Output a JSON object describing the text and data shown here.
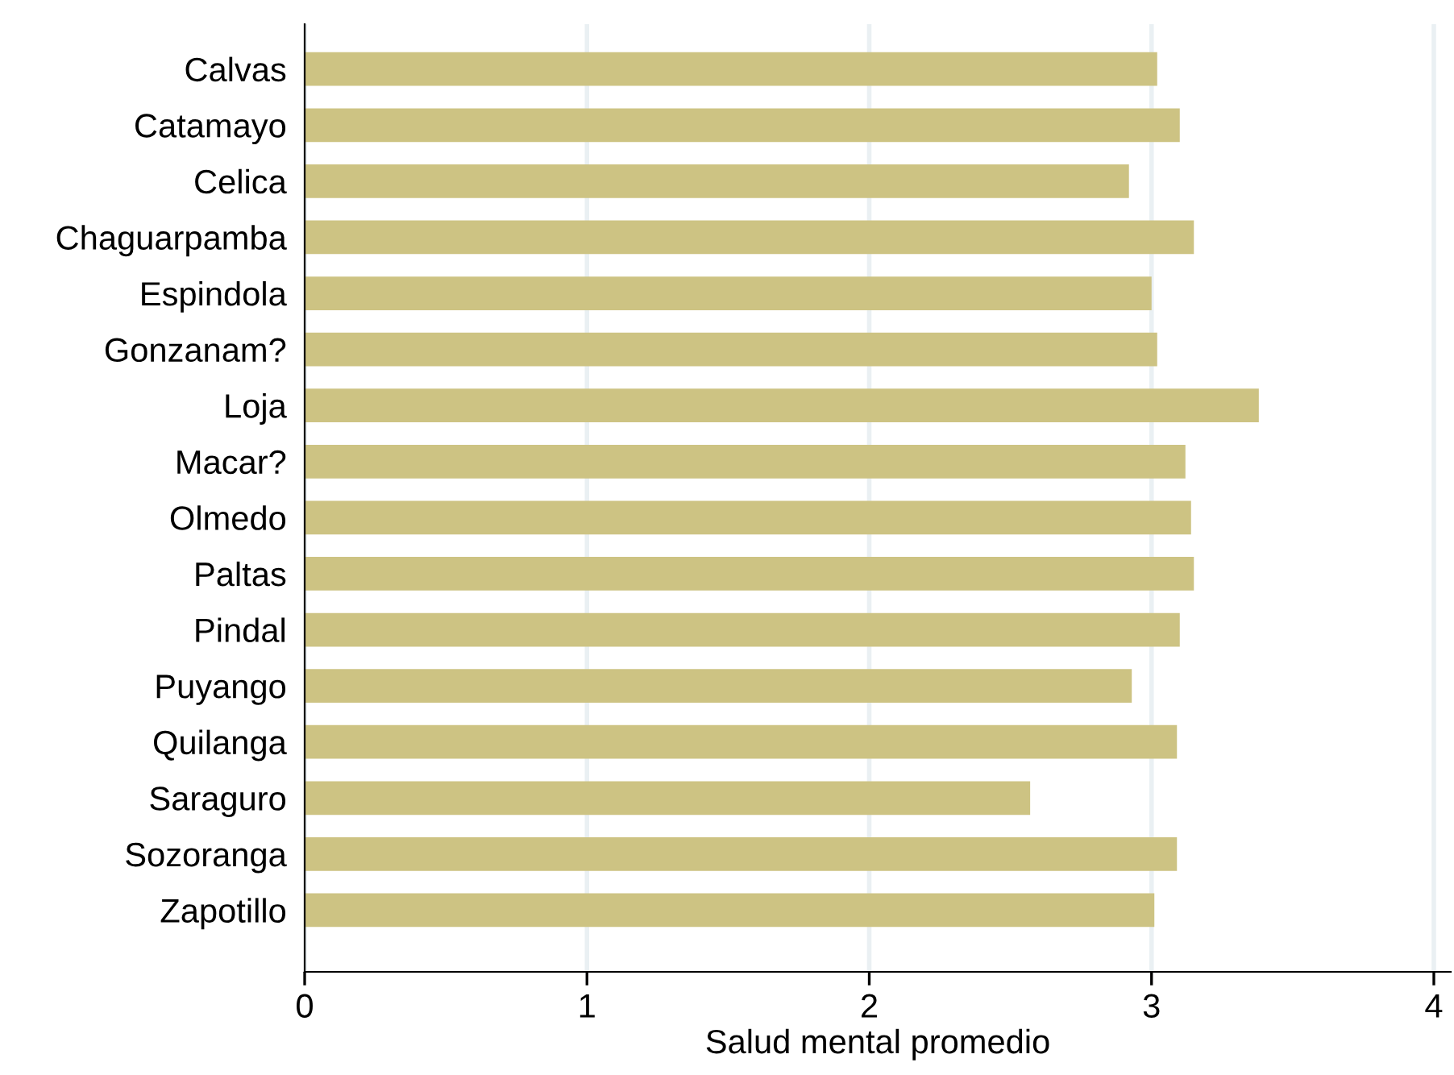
{
  "chart_data": {
    "type": "bar",
    "orientation": "horizontal",
    "xlabel": "Salud mental promedio",
    "categories": [
      "Calvas",
      "Catamayo",
      "Celica",
      "Chaguarpamba",
      "Espindola",
      "Gonzanam?",
      "Loja",
      "Macar?",
      "Olmedo",
      "Paltas",
      "Pindal",
      "Puyango",
      "Quilanga",
      "Saraguro",
      "Sozoranga",
      "Zapotillo"
    ],
    "values": [
      3.02,
      3.1,
      2.92,
      3.15,
      3.0,
      3.02,
      3.38,
      3.12,
      3.14,
      3.15,
      3.1,
      2.93,
      3.09,
      2.57,
      3.09,
      3.01
    ],
    "color": "#cdc383",
    "xlim": [
      0,
      4.06
    ],
    "xticks": [
      0,
      1,
      2,
      3,
      4
    ],
    "grid": "x",
    "legend": false
  }
}
